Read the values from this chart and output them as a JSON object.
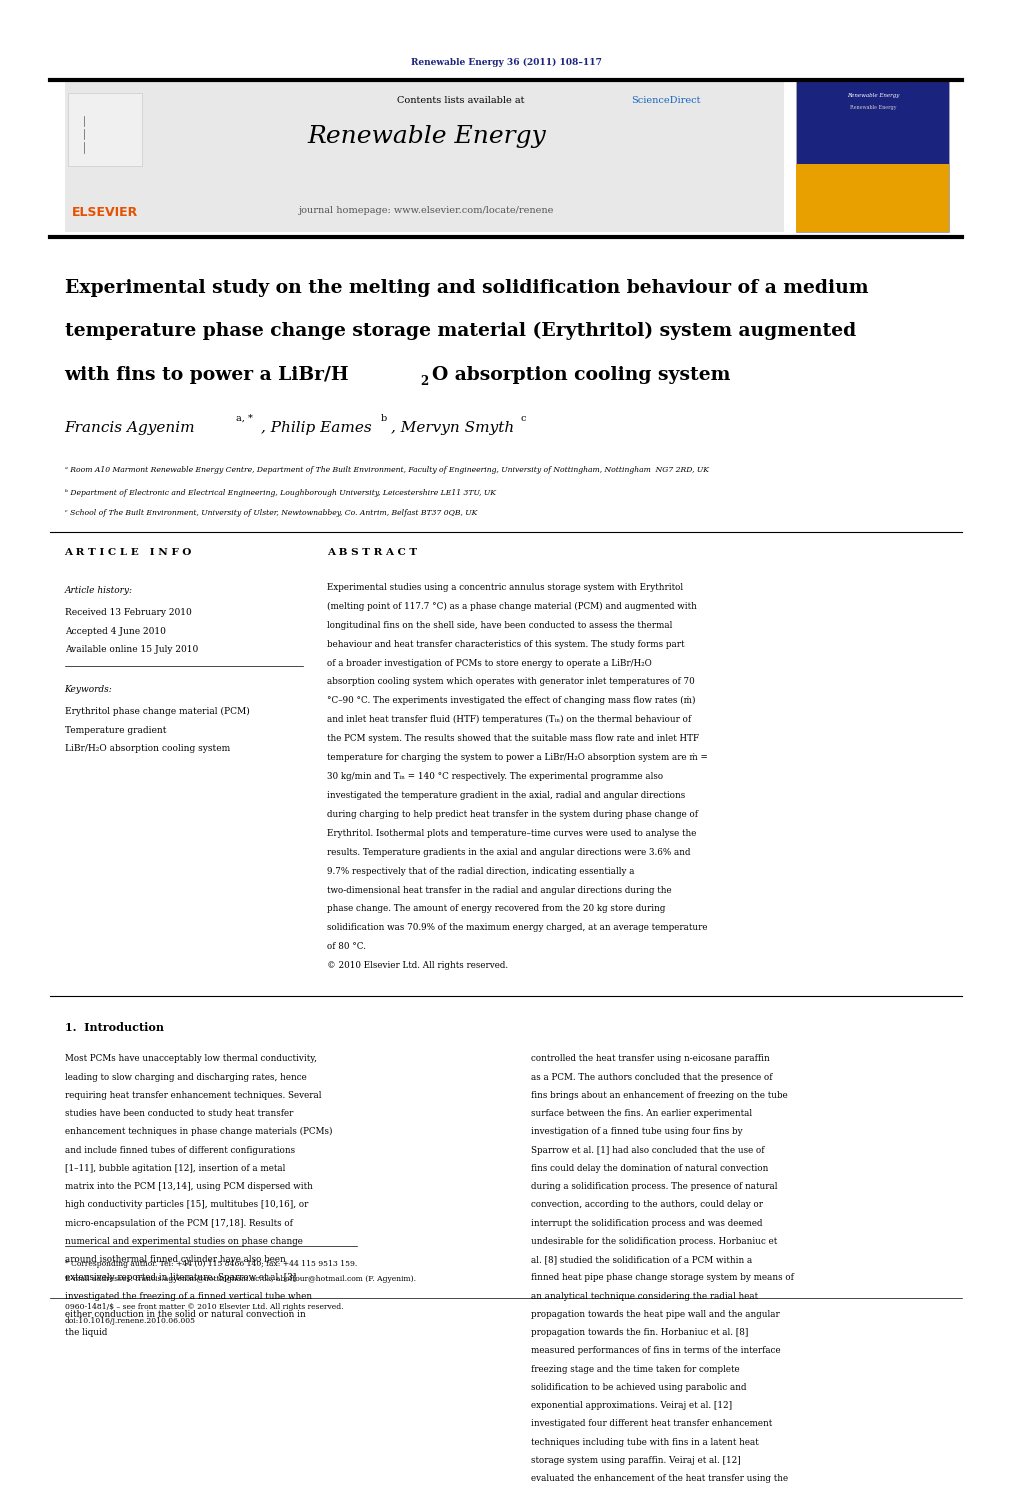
{
  "page_width": 9.92,
  "page_height": 13.23,
  "bg_color": "#ffffff",
  "top_journal_ref": "Renewable Energy 36 (2011) 108–117",
  "top_journal_ref_color": "#1a237e",
  "header_bg": "#e8e8e8",
  "header_contents": "Contents lists available at ScienceDirect",
  "header_sciencedirect_color": "#1565c0",
  "header_journal_name": "Renewable Energy",
  "header_homepage": "journal homepage: www.elsevier.com/locate/renene",
  "elsevier_color": "#e65100",
  "divider_color": "#000000",
  "article_title_line1": "Experimental study on the melting and solidification behaviour of a medium",
  "article_title_line2": "temperature phase change storage material (Erythritol) system augmented",
  "article_title_line3": "with fins to power a LiBr/H₂O absorption cooling system",
  "affil_a": "ᵃ Room A10 Marmont Renewable Energy Centre, Department of The Built Environment, Faculty of Engineering, University of Nottingham, Nottingham  NG7 2RD, UK",
  "affil_b": "ᵇ Department of Electronic and Electrical Engineering, Loughborough University, Leicestershire LE11 3TU, UK",
  "affil_c": "ᶜ School of The Built Environment, University of Ulster, Newtownabbey, Co. Antrim, Belfast BT37 0QB, UK",
  "article_info_title": "A R T I C L E   I N F O",
  "abstract_title": "A B S T R A C T",
  "article_history_label": "Article history:",
  "received": "Received 13 February 2010",
  "accepted": "Accepted 4 June 2010",
  "available": "Available online 15 July 2010",
  "keywords_label": "Keywords:",
  "keyword1": "Erythritol phase change material (PCM)",
  "keyword2": "Temperature gradient",
  "keyword3": "LiBr/H₂O absorption cooling system",
  "abstract_text": "Experimental studies using a concentric annulus storage system with Erythritol (melting point of 117.7 °C) as a phase change material (PCM) and augmented with longitudinal fins on the shell side, have been conducted to assess the thermal behaviour and heat transfer characteristics of this system. The study forms part of a broader investigation of PCMs to store energy to operate a LiBr/H₂O absorption cooling system which operates with generator inlet temperatures of 70 °C–90 °C. The experiments investigated the effect of changing mass flow rates (ṁ) and inlet heat transfer fluid (HTF) temperatures (Tᵢₙ) on the thermal behaviour of the PCM system. The results showed that the suitable mass flow rate and inlet HTF temperature for charging the system to power a LiBr/H₂O absorption system are ṁ = 30 kg/min and Tᵢₙ = 140 °C respectively. The experimental programme also investigated the temperature gradient in the axial, radial and angular directions during charging to help predict heat transfer in the system during phase change of Erythritol. Isothermal plots and temperature–time curves were used to analyse the results. Temperature gradients in the axial and angular directions were 3.6% and 9.7% respectively that of the radial direction, indicating essentially a two-dimensional heat transfer in the radial and angular directions during the phase change. The amount of energy recovered from the 20 kg store during solidification was 70.9% of the maximum energy charged, at an average temperature of 80 °C.\n© 2010 Elsevier Ltd. All rights reserved.",
  "intro_title": "1.  Introduction",
  "intro_col1": "Most PCMs have unacceptably low thermal conductivity, leading to slow charging and discharging rates, hence requiring heat transfer enhancement techniques. Several studies have been conducted to study heat transfer enhancement techniques in phase change materials (PCMs) and include finned tubes of different configurations [1–11], bubble agitation [12], insertion of a metal matrix into the PCM [13,14], using PCM dispersed with high conductivity particles [15], multitubes [10,16], or micro-encapsulation of the PCM [17,18]. Results of numerical and experimental studies on phase change around isothermal finned cylinder have also been extensively reported in literature. Sparrow et al. [3] investigated the freezing of a finned vertical tube when either conduction in the solid or natural convection in the liquid",
  "intro_col2": "controlled the heat transfer using n-eicosane paraffin as a PCM. The authors concluded that the presence of fins brings about an enhancement of freezing on the tube surface between the fins. An earlier experimental investigation of a finned tube using four fins by Sparrow et al. [1] had also concluded that the use of fins could delay the domination of natural convection during a solidification process. The presence of natural convection, according to the authors, could delay or interrupt the solidification process and was deemed undesirable for the solidification process. Horbaniuc et al. [8] studied the solidification of a PCM within a finned heat pipe phase change storage system by means of an analytical technique considering the radial heat propagation towards the heat pipe wall and the angular propagation towards the fin. Horbaniuc et al. [8] measured performances of fins in terms of the interface freezing stage and the time taken for complete solidification to be achieved using parabolic and exponential approximations. Veiraj et al. [12] investigated four different heat transfer enhancement techniques including tube with fins in a latent heat storage system using paraffin. Veiraj et al. [12] evaluated the enhancement of the heat transfer using the effective thermal conductivity taken from a two-",
  "footnote_corresponding": "* Corresponding author. Tel: +44 (0) 115 8466 140; fax: +44 115 9513 159.",
  "footnote_email": "E-mail addresses: francis.agyenim@nottingham.ac.uk, aboffour@hotmail.com (F. Agyenim).",
  "footer_issn": "0960-1481/$ – see front matter © 2010 Elsevier Ltd. All rights reserved.",
  "footer_doi": "doi:10.1016/j.renene.2010.06.005"
}
